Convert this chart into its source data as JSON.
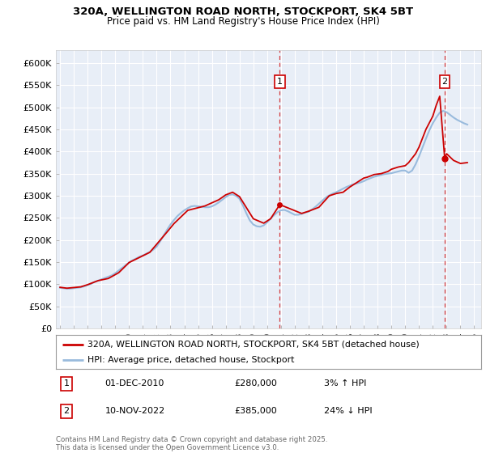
{
  "title": "320A, WELLINGTON ROAD NORTH, STOCKPORT, SK4 5BT",
  "subtitle": "Price paid vs. HM Land Registry's House Price Index (HPI)",
  "ylabel_ticks": [
    0,
    50000,
    100000,
    150000,
    200000,
    250000,
    300000,
    350000,
    400000,
    450000,
    500000,
    550000,
    600000
  ],
  "ylabel_labels": [
    "£0",
    "£50K",
    "£100K",
    "£150K",
    "£200K",
    "£250K",
    "£300K",
    "£350K",
    "£400K",
    "£450K",
    "£500K",
    "£550K",
    "£600K"
  ],
  "ylim": [
    0,
    630000
  ],
  "xlim_start": 1994.7,
  "xlim_end": 2025.5,
  "background_color": "#e8eef7",
  "fig_bg_color": "#ffffff",
  "grid_color": "#ffffff",
  "red_line_color": "#cc0000",
  "blue_line_color": "#99bbdd",
  "marker1_x": 2010.917,
  "marker1_y": 280000,
  "marker1_label": "1",
  "marker1_date": "01-DEC-2010",
  "marker1_price": "£280,000",
  "marker1_hpi": "3% ↑ HPI",
  "marker2_x": 2022.86,
  "marker2_y": 385000,
  "marker2_label": "2",
  "marker2_date": "10-NOV-2022",
  "marker2_price": "£385,000",
  "marker2_hpi": "24% ↓ HPI",
  "legend1": "320A, WELLINGTON ROAD NORTH, STOCKPORT, SK4 5BT (detached house)",
  "legend2": "HPI: Average price, detached house, Stockport",
  "footer": "Contains HM Land Registry data © Crown copyright and database right 2025.\nThis data is licensed under the Open Government Licence v3.0.",
  "hpi_data_x": [
    1995.0,
    1995.25,
    1995.5,
    1995.75,
    1996.0,
    1996.25,
    1996.5,
    1996.75,
    1997.0,
    1997.25,
    1997.5,
    1997.75,
    1998.0,
    1998.25,
    1998.5,
    1998.75,
    1999.0,
    1999.25,
    1999.5,
    1999.75,
    2000.0,
    2000.25,
    2000.5,
    2000.75,
    2001.0,
    2001.25,
    2001.5,
    2001.75,
    2002.0,
    2002.25,
    2002.5,
    2002.75,
    2003.0,
    2003.25,
    2003.5,
    2003.75,
    2004.0,
    2004.25,
    2004.5,
    2004.75,
    2005.0,
    2005.25,
    2005.5,
    2005.75,
    2006.0,
    2006.25,
    2006.5,
    2006.75,
    2007.0,
    2007.25,
    2007.5,
    2007.75,
    2008.0,
    2008.25,
    2008.5,
    2008.75,
    2009.0,
    2009.25,
    2009.5,
    2009.75,
    2010.0,
    2010.25,
    2010.5,
    2010.75,
    2011.0,
    2011.25,
    2011.5,
    2011.75,
    2012.0,
    2012.25,
    2012.5,
    2012.75,
    2013.0,
    2013.25,
    2013.5,
    2013.75,
    2014.0,
    2014.25,
    2014.5,
    2014.75,
    2015.0,
    2015.25,
    2015.5,
    2015.75,
    2016.0,
    2016.25,
    2016.5,
    2016.75,
    2017.0,
    2017.25,
    2017.5,
    2017.75,
    2018.0,
    2018.25,
    2018.5,
    2018.75,
    2019.0,
    2019.25,
    2019.5,
    2019.75,
    2020.0,
    2020.25,
    2020.5,
    2020.75,
    2021.0,
    2021.25,
    2021.5,
    2021.75,
    2022.0,
    2022.25,
    2022.5,
    2022.75,
    2023.0,
    2023.25,
    2023.5,
    2023.75,
    2024.0,
    2024.25,
    2024.5
  ],
  "hpi_data_y": [
    92000,
    91000,
    90000,
    90000,
    91000,
    92000,
    93000,
    95000,
    98000,
    101000,
    105000,
    108000,
    111000,
    114000,
    117000,
    120000,
    125000,
    131000,
    137000,
    143000,
    149000,
    154000,
    158000,
    162000,
    165000,
    169000,
    173000,
    178000,
    185000,
    197000,
    210000,
    223000,
    235000,
    245000,
    254000,
    261000,
    267000,
    272000,
    276000,
    277000,
    276000,
    275000,
    274000,
    274000,
    276000,
    280000,
    285000,
    291000,
    297000,
    302000,
    303000,
    300000,
    293000,
    278000,
    260000,
    244000,
    235000,
    231000,
    230000,
    233000,
    240000,
    248000,
    256000,
    263000,
    267000,
    268000,
    265000,
    261000,
    257000,
    257000,
    259000,
    262000,
    264000,
    269000,
    275000,
    282000,
    289000,
    296000,
    301000,
    305000,
    308000,
    312000,
    316000,
    320000,
    323000,
    326000,
    328000,
    330000,
    333000,
    337000,
    340000,
    343000,
    345000,
    347000,
    349000,
    350000,
    351000,
    353000,
    355000,
    357000,
    357000,
    352000,
    357000,
    371000,
    389000,
    409000,
    429000,
    448000,
    464000,
    477000,
    488000,
    492000,
    489000,
    483000,
    477000,
    472000,
    468000,
    464000,
    461000
  ],
  "price_data_x": [
    1995.0,
    1995.5,
    1996.5,
    1997.0,
    1997.75,
    1998.5,
    1999.25,
    2000.0,
    2001.5,
    2002.75,
    2003.25,
    2004.25,
    2005.5,
    2006.5,
    2007.0,
    2007.5,
    2008.0,
    2009.0,
    2009.75,
    2010.25,
    2010.917,
    2012.5,
    2013.0,
    2013.75,
    2014.5,
    2015.0,
    2015.5,
    2016.0,
    2016.5,
    2017.0,
    2017.25,
    2017.75,
    2018.25,
    2018.75,
    2019.0,
    2019.5,
    2020.0,
    2020.25,
    2020.75,
    2021.0,
    2021.25,
    2021.5,
    2021.75,
    2022.0,
    2022.25,
    2022.5,
    2022.86,
    2023.0,
    2023.5,
    2024.0,
    2024.5
  ],
  "price_data_y": [
    93000,
    91000,
    94000,
    99000,
    108000,
    113000,
    126000,
    149000,
    172000,
    218000,
    237000,
    267000,
    277000,
    291000,
    302000,
    308000,
    298000,
    248000,
    238000,
    248000,
    280000,
    260000,
    265000,
    274000,
    300000,
    305000,
    308000,
    320000,
    330000,
    340000,
    342000,
    348000,
    350000,
    355000,
    360000,
    365000,
    368000,
    375000,
    395000,
    410000,
    430000,
    450000,
    465000,
    480000,
    505000,
    525000,
    385000,
    395000,
    380000,
    373000,
    375000
  ]
}
